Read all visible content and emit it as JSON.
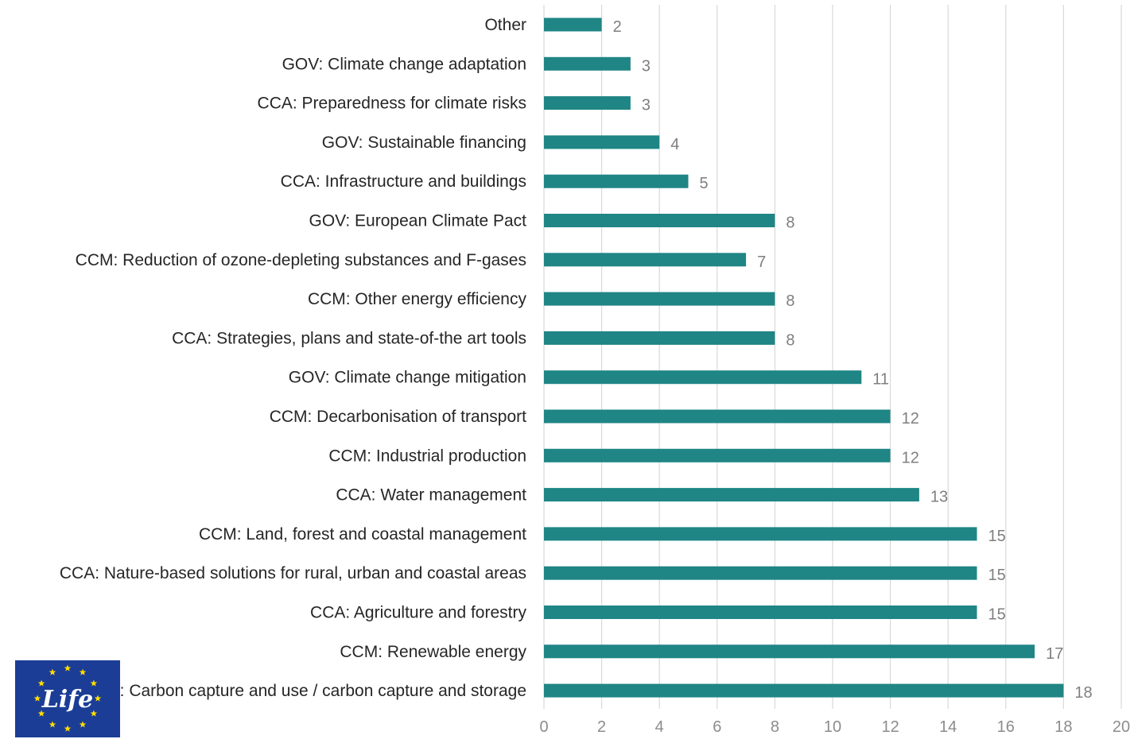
{
  "chart_data": {
    "type": "bar",
    "orientation": "horizontal",
    "categories": [
      "Other",
      "GOV: Climate change adaptation",
      "CCA: Preparedness for climate risks",
      "GOV: Sustainable financing",
      "CCA: Infrastructure and buildings",
      "GOV: European Climate Pact",
      "CCM: Reduction of ozone-depleting substances and F-gases",
      "CCM: Other energy efficiency",
      "CCA: Strategies, plans and state-of-the art tools",
      "GOV: Climate change mitigation",
      "CCM: Decarbonisation of transport",
      "CCM: Industrial production",
      "CCA: Water management",
      "CCM: Land, forest and coastal management",
      "CCA: Nature-based solutions for rural, urban and coastal areas",
      "CCA: Agriculture and forestry",
      "CCM: Renewable energy",
      "CCM: Carbon capture and use / carbon capture and storage"
    ],
    "values": [
      2,
      3,
      3,
      4,
      5,
      8,
      7,
      8,
      8,
      11,
      12,
      12,
      13,
      15,
      15,
      15,
      17,
      18
    ],
    "title": "",
    "xlabel": "",
    "ylabel": "",
    "xlim": [
      0,
      20
    ],
    "xticks": [
      0,
      2,
      4,
      6,
      8,
      10,
      12,
      14,
      16,
      18,
      20
    ],
    "grid": "vertical",
    "legend": "none",
    "bar_color": "#1f8585"
  },
  "logo": {
    "name": "eu-life-logo",
    "text": "Life",
    "bg_color": "#1b3d96",
    "star_color": "#ffdd00"
  }
}
